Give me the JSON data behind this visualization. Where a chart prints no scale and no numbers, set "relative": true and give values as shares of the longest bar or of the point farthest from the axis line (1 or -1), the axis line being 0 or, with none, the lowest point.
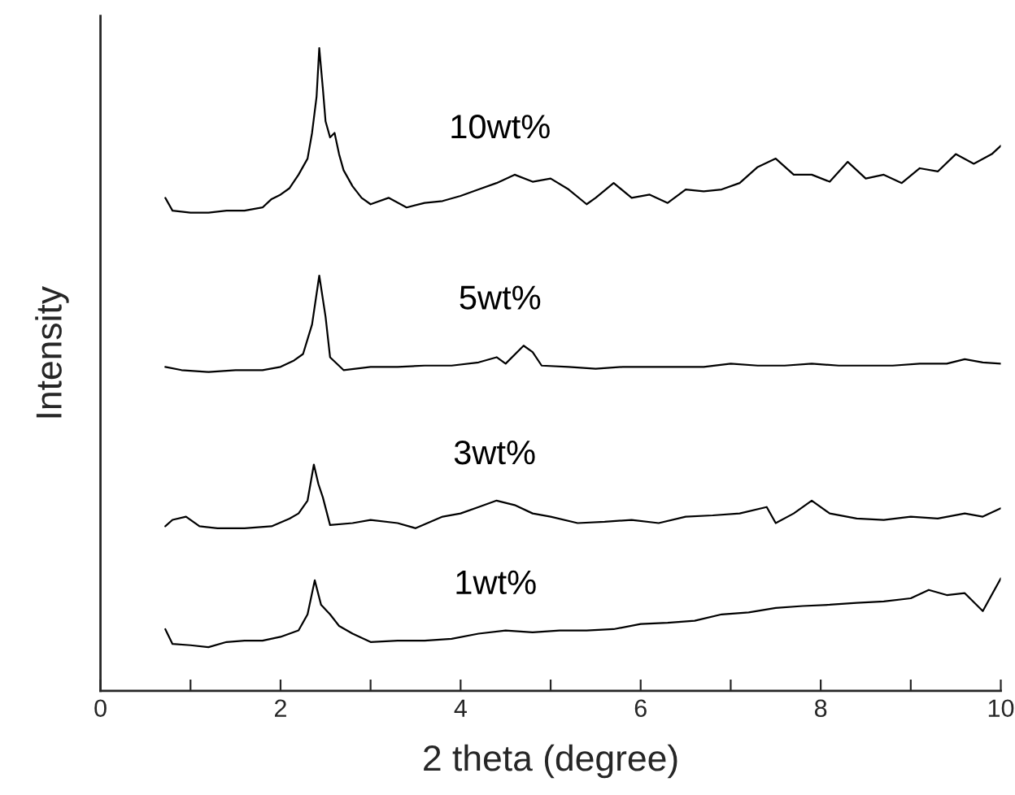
{
  "chart_data": {
    "type": "line",
    "relative": true,
    "xlabel": "2 theta (degree)",
    "ylabel": "Intensity",
    "xlim": [
      0,
      10
    ],
    "xticks": [
      0,
      {
        "value": 1,
        "label": null
      },
      2,
      {
        "value": 3,
        "label": null
      },
      4,
      {
        "value": 5,
        "label": null
      },
      6,
      {
        "value": 7,
        "label": null
      },
      8,
      {
        "value": 9,
        "label": null
      },
      10
    ],
    "tick_labels": "x",
    "grid": false,
    "legend": false,
    "marker": "none",
    "line_style": "solid",
    "series": [
      {
        "name": "10wt%",
        "color": "#000000",
        "x": [
          0.72,
          0.8,
          1.0,
          1.2,
          1.4,
          1.6,
          1.8,
          1.9,
          2.0,
          2.1,
          2.2,
          2.3,
          2.35,
          2.4,
          2.43,
          2.47,
          2.5,
          2.55,
          2.6,
          2.65,
          2.7,
          2.8,
          2.9,
          3.0,
          3.2,
          3.4,
          3.6,
          3.8,
          4.0,
          4.2,
          4.4,
          4.6,
          4.8,
          5.0,
          5.2,
          5.4,
          5.5,
          5.7,
          5.9,
          6.1,
          6.3,
          6.5,
          6.7,
          6.9,
          7.1,
          7.3,
          7.5,
          7.7,
          7.9,
          8.1,
          8.3,
          8.5,
          8.7,
          8.9,
          9.1,
          9.3,
          9.5,
          9.7,
          9.9,
          10.0
        ],
        "values": [
          0.767,
          0.747,
          0.744,
          0.744,
          0.747,
          0.747,
          0.752,
          0.765,
          0.772,
          0.782,
          0.803,
          0.828,
          0.868,
          0.924,
          1.0,
          0.937,
          0.886,
          0.861,
          0.868,
          0.835,
          0.81,
          0.785,
          0.767,
          0.757,
          0.767,
          0.752,
          0.759,
          0.762,
          0.77,
          0.78,
          0.79,
          0.803,
          0.792,
          0.797,
          0.78,
          0.757,
          0.767,
          0.79,
          0.767,
          0.772,
          0.759,
          0.78,
          0.777,
          0.78,
          0.79,
          0.815,
          0.828,
          0.803,
          0.803,
          0.792,
          0.823,
          0.797,
          0.803,
          0.79,
          0.813,
          0.808,
          0.835,
          0.82,
          0.835,
          0.848
        ]
      },
      {
        "name": "5wt%",
        "color": "#000000",
        "x": [
          0.72,
          0.9,
          1.2,
          1.5,
          1.8,
          2.0,
          2.15,
          2.25,
          2.35,
          2.43,
          2.5,
          2.55,
          2.7,
          3.0,
          3.3,
          3.6,
          3.9,
          4.2,
          4.4,
          4.5,
          4.7,
          4.8,
          4.9,
          5.2,
          5.5,
          5.8,
          6.1,
          6.4,
          6.7,
          7.0,
          7.3,
          7.6,
          7.9,
          8.2,
          8.5,
          8.8,
          9.1,
          9.4,
          9.6,
          9.8,
          10.0
        ],
        "values": [
          0.504,
          0.499,
          0.496,
          0.499,
          0.499,
          0.504,
          0.514,
          0.524,
          0.57,
          0.646,
          0.582,
          0.519,
          0.499,
          0.504,
          0.504,
          0.506,
          0.506,
          0.511,
          0.519,
          0.509,
          0.537,
          0.527,
          0.506,
          0.504,
          0.501,
          0.504,
          0.504,
          0.504,
          0.504,
          0.509,
          0.506,
          0.506,
          0.509,
          0.506,
          0.506,
          0.506,
          0.509,
          0.509,
          0.516,
          0.511,
          0.509
        ]
      },
      {
        "name": "3wt%",
        "color": "#000000",
        "x": [
          0.72,
          0.8,
          0.95,
          1.1,
          1.3,
          1.6,
          1.9,
          2.1,
          2.2,
          2.3,
          2.37,
          2.42,
          2.47,
          2.55,
          2.8,
          3.0,
          3.3,
          3.5,
          3.8,
          4.0,
          4.2,
          4.4,
          4.6,
          4.8,
          5.0,
          5.3,
          5.6,
          5.9,
          6.2,
          6.5,
          6.8,
          7.1,
          7.4,
          7.5,
          7.7,
          7.9,
          8.1,
          8.4,
          8.7,
          9.0,
          9.3,
          9.6,
          9.8,
          10.0
        ],
        "values": [
          0.256,
          0.266,
          0.271,
          0.256,
          0.253,
          0.253,
          0.256,
          0.268,
          0.276,
          0.296,
          0.352,
          0.322,
          0.301,
          0.258,
          0.261,
          0.266,
          0.261,
          0.253,
          0.271,
          0.276,
          0.286,
          0.296,
          0.289,
          0.276,
          0.271,
          0.261,
          0.263,
          0.266,
          0.261,
          0.271,
          0.273,
          0.276,
          0.286,
          0.261,
          0.276,
          0.296,
          0.276,
          0.268,
          0.266,
          0.271,
          0.268,
          0.276,
          0.271,
          0.284
        ]
      },
      {
        "name": "1wt%",
        "color": "#000000",
        "x": [
          0.72,
          0.8,
          1.0,
          1.2,
          1.4,
          1.6,
          1.8,
          2.0,
          2.2,
          2.3,
          2.38,
          2.45,
          2.55,
          2.65,
          2.8,
          3.0,
          3.3,
          3.6,
          3.9,
          4.2,
          4.5,
          4.8,
          5.1,
          5.4,
          5.7,
          6.0,
          6.3,
          6.6,
          6.9,
          7.2,
          7.5,
          7.8,
          8.1,
          8.4,
          8.7,
          9.0,
          9.2,
          9.4,
          9.6,
          9.8,
          10.0
        ],
        "values": [
          0.096,
          0.073,
          0.071,
          0.068,
          0.076,
          0.078,
          0.078,
          0.084,
          0.094,
          0.119,
          0.172,
          0.134,
          0.119,
          0.101,
          0.089,
          0.076,
          0.078,
          0.078,
          0.081,
          0.089,
          0.094,
          0.091,
          0.094,
          0.094,
          0.096,
          0.104,
          0.106,
          0.109,
          0.119,
          0.122,
          0.129,
          0.132,
          0.134,
          0.137,
          0.139,
          0.144,
          0.157,
          0.149,
          0.152,
          0.124,
          0.175
        ]
      }
    ]
  }
}
